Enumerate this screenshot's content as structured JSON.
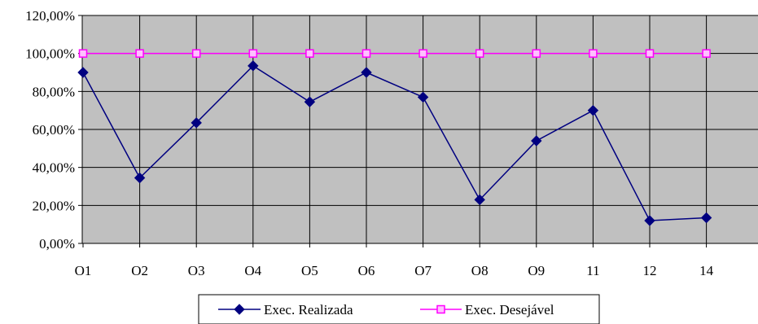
{
  "chart_data": {
    "type": "line",
    "categories": [
      "O1",
      "O2",
      "O3",
      "O4",
      "O5",
      "O6",
      "O7",
      "O8",
      "O9",
      "11",
      "12",
      "14"
    ],
    "series": [
      {
        "name": "Exec. Realizada",
        "color": "#000080",
        "marker": "diamond",
        "values": [
          90,
          34.5,
          63.5,
          93.5,
          74.5,
          90,
          77,
          23,
          54,
          70,
          12,
          13.5
        ]
      },
      {
        "name": "Exec. Desejável",
        "color": "#ff00ff",
        "marker": "square",
        "values": [
          100,
          100,
          100,
          100,
          100,
          100,
          100,
          100,
          100,
          100,
          100,
          100
        ]
      }
    ],
    "ylim": [
      0,
      120
    ],
    "yticks": [
      "0,00%",
      "20,00%",
      "40,00%",
      "60,00%",
      "80,00%",
      "100,00%",
      "120,00%"
    ],
    "ytick_values": [
      0,
      20,
      40,
      60,
      80,
      100,
      120
    ],
    "grid": true,
    "plot_background": "#c0c0c0",
    "legend_position": "bottom"
  }
}
